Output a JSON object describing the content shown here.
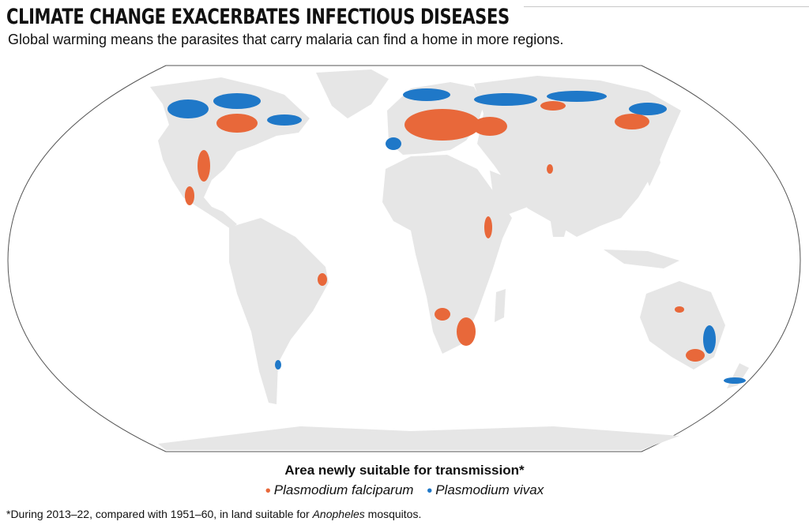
{
  "header": {
    "title": "CLIMATE CHANGE EXACERBATES INFECTIOUS DISEASES",
    "subtitle": "Global warming means the parasites that carry malaria can find a home in more regions."
  },
  "legend": {
    "title": "Area newly suitable for transmission*",
    "items": [
      {
        "label": "Plasmodium falciparum",
        "color": "#e8683a",
        "marker": "•"
      },
      {
        "label": "Plasmodium vivax",
        "color": "#1f78c8",
        "marker": "•"
      }
    ]
  },
  "footnote": {
    "before": "*During 2013–22, compared with 1951–60, in land suitable for ",
    "italic": "Anopheles",
    "after": " mosquitos."
  },
  "colors": {
    "land": "#e6e6e6",
    "ocean": "#ffffff",
    "outline": "#555555",
    "falciparum": "#e8683a",
    "vivax": "#1f78c8"
  }
}
